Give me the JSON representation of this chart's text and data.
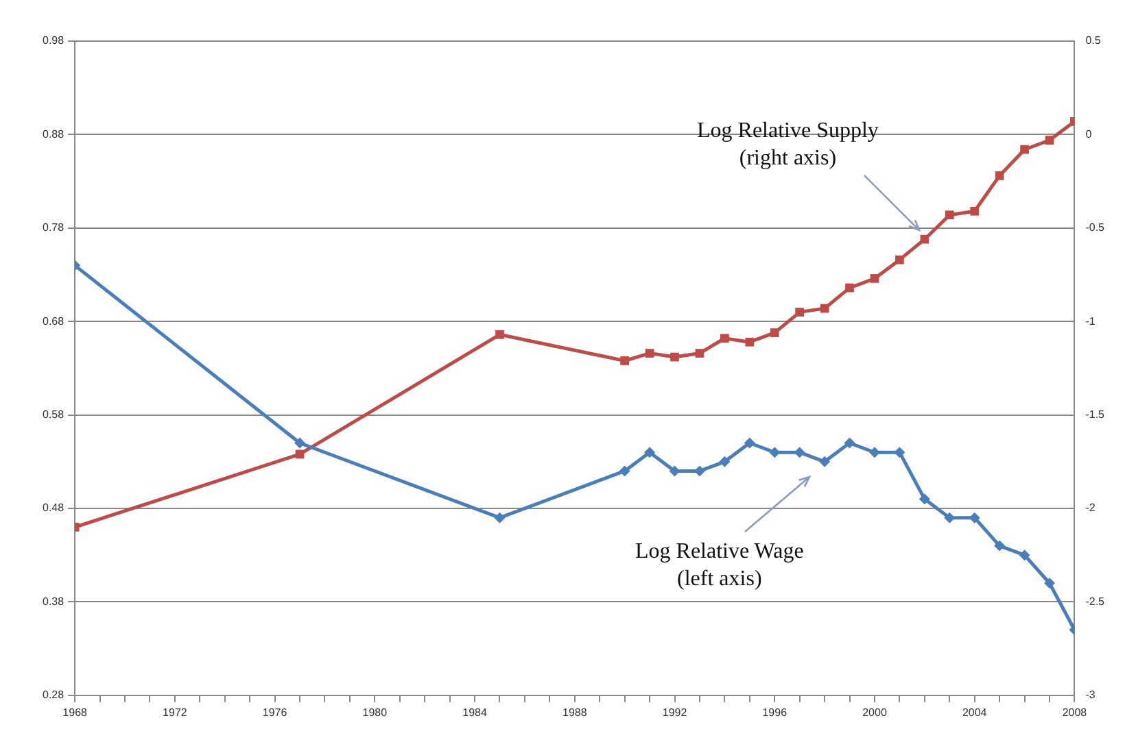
{
  "chart_data": {
    "type": "line",
    "x": [
      1968,
      1977,
      1985,
      1990,
      1991,
      1992,
      1993,
      1994,
      1995,
      1996,
      1997,
      1998,
      1999,
      2000,
      2001,
      2002,
      2003,
      2004,
      2005,
      2006,
      2007,
      2008
    ],
    "series": [
      {
        "color": "#4a7ebb",
        "marker": "diamond",
        "axis": "y",
        "values": [
          0.74,
          0.55,
          0.47,
          0.52,
          0.54,
          0.52,
          0.52,
          0.53,
          0.55,
          0.54,
          0.54,
          0.53,
          0.55,
          0.54,
          0.54,
          0.49,
          0.47,
          0.47,
          0.44,
          0.43,
          0.4,
          0.35
        ]
      },
      {
        "color": "#be4b48",
        "marker": "square",
        "axis": "y2",
        "values": [
          -2.1,
          -1.71,
          -1.07,
          -1.21,
          -1.17,
          -1.19,
          -1.17,
          -1.09,
          -1.11,
          -1.06,
          -0.95,
          -0.93,
          -0.82,
          -0.77,
          -0.67,
          -0.56,
          -0.43,
          -0.41,
          -0.22,
          -0.08,
          -0.03,
          0.07
        ]
      }
    ],
    "xlim": [
      1968,
      2008
    ],
    "xticks": [
      1968,
      {
        "value": 1969,
        "label": null
      },
      {
        "value": 1970,
        "label": null
      },
      {
        "value": 1971,
        "label": null
      },
      1972,
      {
        "value": 1973,
        "label": null
      },
      {
        "value": 1974,
        "label": null
      },
      {
        "value": 1975,
        "label": null
      },
      1976,
      {
        "value": 1977,
        "label": null
      },
      {
        "value": 1978,
        "label": null
      },
      {
        "value": 1979,
        "label": null
      },
      1980,
      {
        "value": 1981,
        "label": null
      },
      {
        "value": 1982,
        "label": null
      },
      {
        "value": 1983,
        "label": null
      },
      1984,
      {
        "value": 1985,
        "label": null
      },
      {
        "value": 1986,
        "label": null
      },
      {
        "value": 1987,
        "label": null
      },
      1988,
      {
        "value": 1989,
        "label": null
      },
      {
        "value": 1990,
        "label": null
      },
      {
        "value": 1991,
        "label": null
      },
      1992,
      {
        "value": 1993,
        "label": null
      },
      {
        "value": 1994,
        "label": null
      },
      {
        "value": 1995,
        "label": null
      },
      1996,
      {
        "value": 1997,
        "label": null
      },
      {
        "value": 1998,
        "label": null
      },
      {
        "value": 1999,
        "label": null
      },
      2000,
      {
        "value": 2001,
        "label": null
      },
      {
        "value": 2002,
        "label": null
      },
      {
        "value": 2003,
        "label": null
      },
      2004,
      {
        "value": 2005,
        "label": null
      },
      {
        "value": 2006,
        "label": null
      },
      {
        "value": 2007,
        "label": null
      },
      2008
    ],
    "ylim": [
      0.28,
      0.98
    ],
    "yticks": [
      0.28,
      0.38,
      0.48,
      0.58,
      0.68,
      0.78,
      0.88,
      0.98
    ],
    "y2lim": [
      -3,
      0.5
    ],
    "y2ticks": [
      -3,
      -2.5,
      -2,
      -1.5,
      -1,
      -0.5,
      0,
      0.5
    ],
    "grid": "y",
    "legend": false,
    "line_style": "solid",
    "annotations": [
      "Log Relative Supply\n(right axis)",
      "Log Relative Wage\n(left axis)"
    ]
  }
}
